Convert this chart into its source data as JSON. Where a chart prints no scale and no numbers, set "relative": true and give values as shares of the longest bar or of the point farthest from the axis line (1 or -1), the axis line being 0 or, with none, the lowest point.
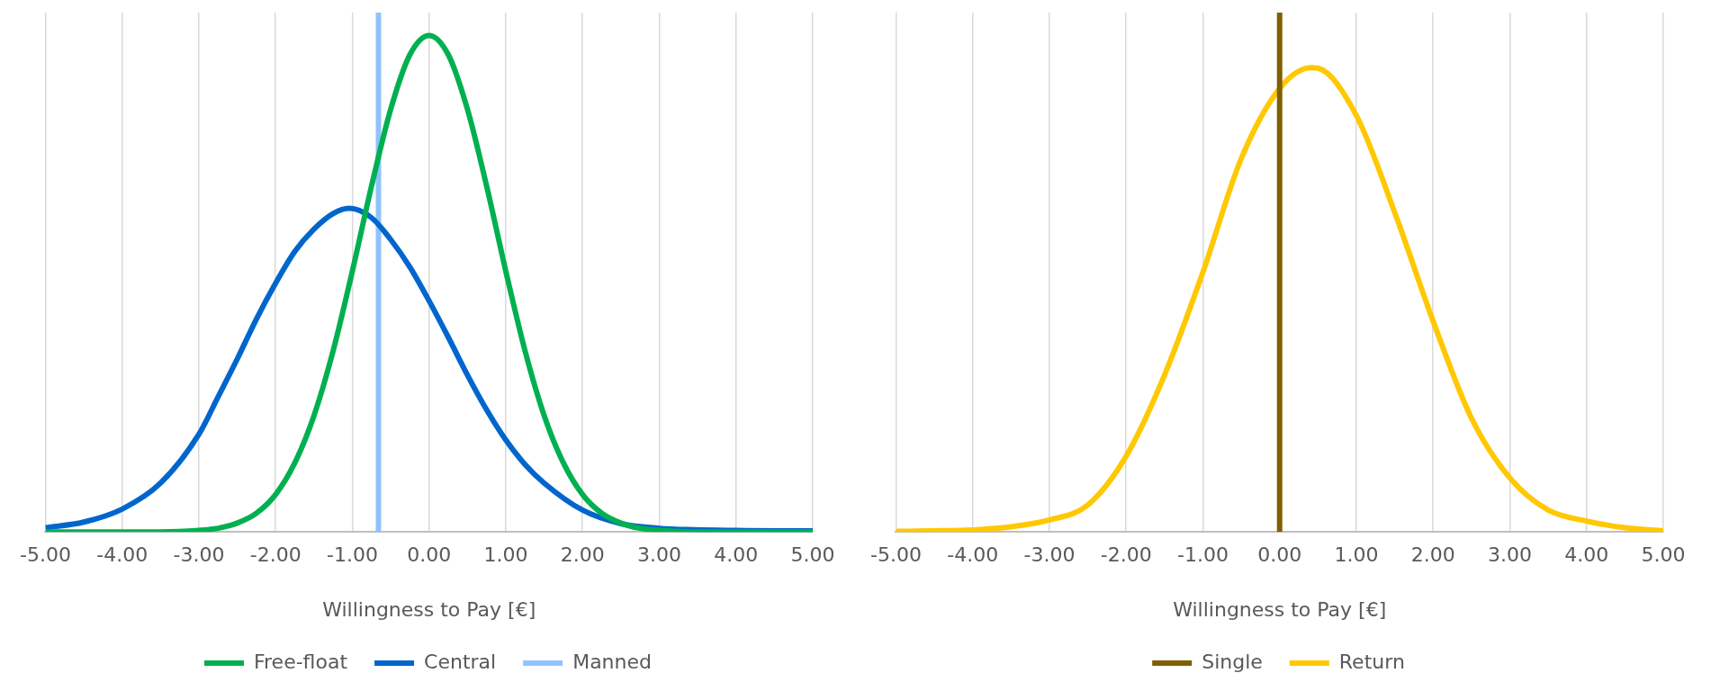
{
  "chart_data": [
    {
      "type": "line",
      "relative": true,
      "xlabel": "Willingness to Pay [€]",
      "xlim": [
        -5,
        5
      ],
      "xticks": [
        {
          "value": -5,
          "label": "-5.00"
        },
        {
          "value": -4,
          "label": "-4.00"
        },
        {
          "value": -3,
          "label": "-3.00"
        },
        {
          "value": -2,
          "label": "-2.00"
        },
        {
          "value": -1,
          "label": "-1.00"
        },
        {
          "value": 0,
          "label": "0.00"
        },
        {
          "value": 1,
          "label": "1.00"
        },
        {
          "value": 2,
          "label": "2.00"
        },
        {
          "value": 3,
          "label": "3.00"
        },
        {
          "value": 4,
          "label": "4.00"
        },
        {
          "value": 5,
          "label": "5.00"
        }
      ],
      "grid": "x",
      "legend": "bottom",
      "marker": "none",
      "line_style": "solid",
      "tick_labels": "x",
      "series": [
        {
          "name": "Free-float",
          "color": "#00b050",
          "x": [
            -5,
            -4,
            -3.5,
            -3,
            -2.75,
            -2.5,
            -2.25,
            -2,
            -1.75,
            -1.5,
            -1.25,
            -1,
            -0.75,
            -0.5,
            -0.25,
            0,
            0.25,
            0.5,
            0.75,
            1,
            1.25,
            1.5,
            1.75,
            2,
            2.25,
            2.5,
            2.75,
            3,
            3.5,
            4,
            5
          ],
          "values": [
            0,
            0,
            0,
            0.003,
            0.007,
            0.017,
            0.036,
            0.072,
            0.133,
            0.224,
            0.349,
            0.502,
            0.666,
            0.814,
            0.919,
            0.956,
            0.919,
            0.814,
            0.666,
            0.502,
            0.349,
            0.224,
            0.133,
            0.072,
            0.036,
            0.017,
            0.007,
            0.003,
            0,
            0,
            0
          ]
        },
        {
          "name": "Central",
          "color": "#0066cc",
          "x": [
            -5,
            -4.5,
            -4,
            -3.5,
            -3,
            -2.75,
            -2.5,
            -2.25,
            -2,
            -1.75,
            -1.5,
            -1.25,
            -1.04,
            -0.75,
            -0.5,
            -0.25,
            0,
            0.25,
            0.5,
            0.75,
            1,
            1.25,
            1.5,
            2,
            2.5,
            3,
            4,
            5
          ],
          "values": [
            0.008,
            0.019,
            0.044,
            0.094,
            0.188,
            0.26,
            0.333,
            0.41,
            0.479,
            0.54,
            0.583,
            0.613,
            0.623,
            0.605,
            0.563,
            0.51,
            0.445,
            0.375,
            0.302,
            0.235,
            0.177,
            0.13,
            0.094,
            0.042,
            0.016,
            0.007,
            0.003,
            0.002
          ]
        },
        {
          "name": "Manned",
          "color": "#8fc3ff",
          "x": [
            -0.66,
            -0.66
          ],
          "values": [
            0,
            1
          ]
        }
      ]
    },
    {
      "type": "line",
      "relative": true,
      "xlabel": "Willingness to Pay [€]",
      "xlim": [
        -5,
        5
      ],
      "xticks": [
        {
          "value": -5,
          "label": "-5.00"
        },
        {
          "value": -4,
          "label": "-4.00"
        },
        {
          "value": -3,
          "label": "-3.00"
        },
        {
          "value": -2,
          "label": "-2.00"
        },
        {
          "value": -1,
          "label": "-1.00"
        },
        {
          "value": 0,
          "label": "0.00"
        },
        {
          "value": 1,
          "label": "1.00"
        },
        {
          "value": 2,
          "label": "2.00"
        },
        {
          "value": 3,
          "label": "3.00"
        },
        {
          "value": 4,
          "label": "4.00"
        },
        {
          "value": 5,
          "label": "5.00"
        }
      ],
      "grid": "x",
      "legend": "bottom",
      "marker": "none",
      "line_style": "solid",
      "tick_labels": "x",
      "series": [
        {
          "name": "Single",
          "color": "#7f6000",
          "x": [
            0,
            0
          ],
          "values": [
            0,
            1
          ]
        },
        {
          "name": "Return",
          "color": "#ffc800",
          "x": [
            -5,
            -4.5,
            -4,
            -3.5,
            -3,
            -2.5,
            -2,
            -1.5,
            -1,
            -0.5,
            0,
            0.41,
            0.5,
            1,
            1.5,
            2,
            2.5,
            3,
            3.5,
            4,
            4.5,
            5
          ],
          "values": [
            0.001,
            0.002,
            0.004,
            0.01,
            0.023,
            0.052,
            0.146,
            0.302,
            0.5,
            0.719,
            0.854,
            0.894,
            0.893,
            0.802,
            0.615,
            0.406,
            0.219,
            0.104,
            0.042,
            0.021,
            0.008,
            0.002
          ]
        }
      ]
    }
  ]
}
